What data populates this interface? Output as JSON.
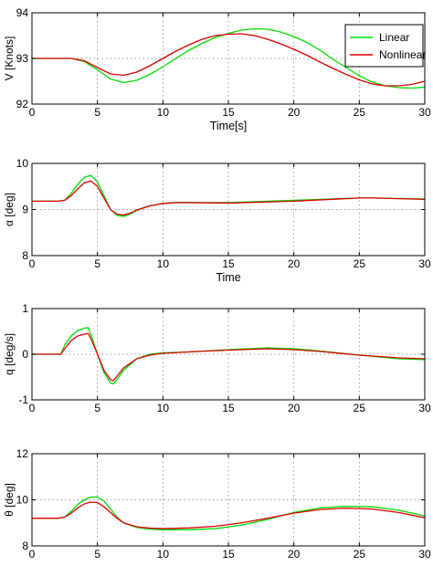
{
  "chart_data": [
    {
      "type": "line",
      "xlabel": "Time[s]",
      "ylabel": "V [Knots]",
      "xlim": [
        0,
        30
      ],
      "ylim": [
        92,
        94
      ],
      "xticks": [
        0,
        5,
        10,
        15,
        20,
        25,
        30
      ],
      "yticks": [
        92,
        93,
        94
      ],
      "grid": true,
      "legend": "top-right",
      "series": [
        {
          "name": "Linear",
          "color": "#00dd00",
          "x": [
            0,
            2,
            3,
            4,
            5,
            6,
            7,
            8,
            9,
            10,
            11,
            12,
            13,
            14,
            15,
            16,
            17,
            18,
            19,
            20,
            21,
            22,
            23,
            24,
            25,
            26,
            27,
            28,
            29,
            30
          ],
          "y": [
            93.0,
            93.0,
            93.0,
            92.93,
            92.75,
            92.55,
            92.47,
            92.52,
            92.65,
            92.82,
            93.0,
            93.18,
            93.33,
            93.46,
            93.55,
            93.62,
            93.65,
            93.64,
            93.58,
            93.48,
            93.35,
            93.18,
            92.98,
            92.8,
            92.62,
            92.48,
            92.4,
            92.36,
            92.35,
            92.37
          ]
        },
        {
          "name": "Nonlinear",
          "color": "#dd0000",
          "x": [
            0,
            2,
            3,
            4,
            5,
            6,
            7,
            8,
            9,
            10,
            11,
            12,
            13,
            14,
            15,
            16,
            17,
            18,
            19,
            20,
            21,
            22,
            23,
            24,
            25,
            26,
            27,
            28,
            29,
            30
          ],
          "y": [
            93.0,
            93.0,
            93.0,
            92.95,
            92.8,
            92.66,
            92.63,
            92.7,
            92.84,
            93.0,
            93.16,
            93.3,
            93.42,
            93.5,
            93.53,
            93.54,
            93.5,
            93.42,
            93.32,
            93.2,
            93.07,
            92.92,
            92.78,
            92.65,
            92.53,
            92.44,
            92.4,
            92.4,
            92.43,
            92.5
          ]
        }
      ]
    },
    {
      "type": "line",
      "xlabel": "Time",
      "ylabel": "α [deg]",
      "xlim": [
        0,
        30
      ],
      "ylim": [
        8,
        10
      ],
      "xticks": [
        0,
        5,
        10,
        15,
        20,
        25,
        30
      ],
      "yticks": [
        8,
        9,
        10
      ],
      "grid": true,
      "series": [
        {
          "name": "Linear",
          "color": "#00dd00",
          "x": [
            0,
            2,
            2.5,
            3,
            3.5,
            4,
            4.5,
            5,
            5.5,
            6,
            6.5,
            7,
            7.5,
            8,
            9,
            10,
            11,
            12,
            15,
            20,
            25,
            26,
            30
          ],
          "y": [
            9.18,
            9.18,
            9.2,
            9.35,
            9.55,
            9.7,
            9.74,
            9.6,
            9.3,
            9.0,
            8.87,
            8.85,
            8.9,
            8.98,
            9.08,
            9.13,
            9.15,
            9.15,
            9.15,
            9.2,
            9.25,
            9.25,
            9.23
          ]
        },
        {
          "name": "Nonlinear",
          "color": "#dd0000",
          "x": [
            0,
            2,
            2.5,
            3,
            3.5,
            4,
            4.5,
            5,
            5.5,
            6,
            6.5,
            7,
            7.5,
            8,
            9,
            10,
            11,
            12,
            15,
            20,
            25,
            26,
            30
          ],
          "y": [
            9.18,
            9.18,
            9.2,
            9.3,
            9.45,
            9.58,
            9.62,
            9.5,
            9.25,
            9.0,
            8.9,
            8.88,
            8.92,
            8.99,
            9.08,
            9.13,
            9.15,
            9.15,
            9.14,
            9.18,
            9.25,
            9.25,
            9.22
          ]
        }
      ]
    },
    {
      "type": "line",
      "ylabel": "q [deg/s]",
      "xlim": [
        0,
        30
      ],
      "ylim": [
        -1,
        1
      ],
      "xticks": [
        0,
        5,
        10,
        15,
        20,
        25,
        30
      ],
      "yticks": [
        -1,
        0,
        1
      ],
      "grid": true,
      "series": [
        {
          "name": "Linear",
          "color": "#00dd00",
          "x": [
            0,
            2.2,
            2.5,
            3,
            3.5,
            4,
            4.3,
            4.6,
            5,
            5.5,
            6,
            6.2,
            6.5,
            7,
            8,
            9,
            10,
            12,
            15,
            18,
            20,
            22,
            25,
            28,
            30
          ],
          "y": [
            0,
            0,
            0.2,
            0.4,
            0.52,
            0.57,
            0.58,
            0.35,
            0.0,
            -0.4,
            -0.63,
            -0.65,
            -0.55,
            -0.35,
            -0.1,
            0.0,
            0.03,
            0.05,
            0.1,
            0.14,
            0.12,
            0.07,
            -0.02,
            -0.1,
            -0.12
          ]
        },
        {
          "name": "Nonlinear",
          "color": "#dd0000",
          "x": [
            0,
            2.2,
            2.5,
            3,
            3.5,
            4,
            4.3,
            4.6,
            5,
            5.5,
            6,
            6.2,
            6.5,
            7,
            8,
            9,
            10,
            12,
            15,
            18,
            20,
            22,
            25,
            28,
            30
          ],
          "y": [
            0,
            0,
            0.12,
            0.3,
            0.4,
            0.44,
            0.45,
            0.28,
            0.0,
            -0.35,
            -0.56,
            -0.58,
            -0.48,
            -0.3,
            -0.1,
            -0.02,
            0.02,
            0.05,
            0.09,
            0.12,
            0.1,
            0.06,
            -0.02,
            -0.08,
            -0.1
          ]
        }
      ]
    },
    {
      "type": "line",
      "ylabel": "θ [deg]",
      "xlim": [
        0,
        30
      ],
      "ylim": [
        8,
        12
      ],
      "xticks": [
        0,
        5,
        10,
        15,
        20,
        25,
        30
      ],
      "yticks": [
        8,
        10,
        12
      ],
      "grid": true,
      "series": [
        {
          "name": "Linear",
          "color": "#00dd00",
          "x": [
            0,
            2,
            2.5,
            3,
            3.5,
            4,
            4.5,
            5,
            5.5,
            6,
            6.5,
            7,
            8,
            9,
            10,
            12,
            14,
            16,
            18,
            20,
            22,
            24,
            26,
            28,
            30
          ],
          "y": [
            9.2,
            9.2,
            9.25,
            9.5,
            9.8,
            10.0,
            10.12,
            10.12,
            9.95,
            9.6,
            9.25,
            9.0,
            8.8,
            8.73,
            8.7,
            8.7,
            8.75,
            8.9,
            9.15,
            9.45,
            9.65,
            9.72,
            9.7,
            9.55,
            9.3
          ]
        },
        {
          "name": "Nonlinear",
          "color": "#dd0000",
          "x": [
            0,
            2,
            2.5,
            3,
            3.5,
            4,
            4.5,
            5,
            5.5,
            6,
            6.5,
            7,
            8,
            9,
            10,
            12,
            14,
            16,
            18,
            20,
            22,
            24,
            26,
            28,
            30
          ],
          "y": [
            9.2,
            9.2,
            9.25,
            9.42,
            9.65,
            9.82,
            9.9,
            9.88,
            9.7,
            9.45,
            9.2,
            9.0,
            8.83,
            8.77,
            8.75,
            8.78,
            8.85,
            9.0,
            9.2,
            9.42,
            9.58,
            9.64,
            9.6,
            9.45,
            9.22
          ]
        }
      ]
    }
  ]
}
